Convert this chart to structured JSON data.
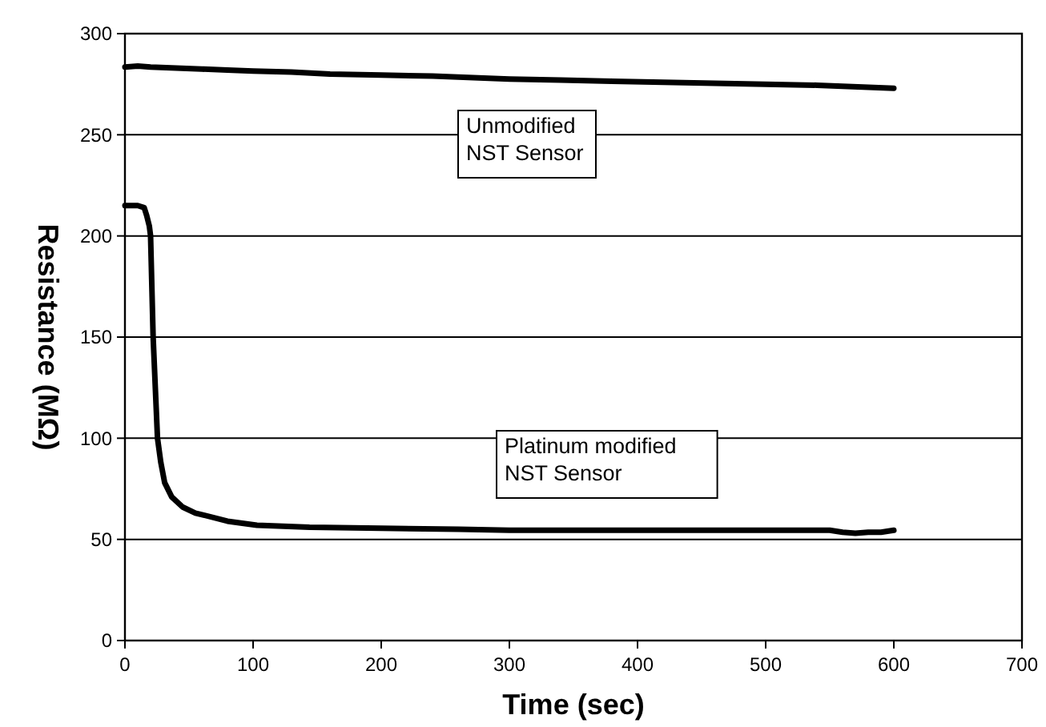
{
  "chart_data": {
    "type": "line",
    "xlabel": "Time (sec)",
    "ylabel": "Resistance (MΩ)",
    "xlim": [
      0,
      700
    ],
    "ylim": [
      0,
      300
    ],
    "xticks": [
      0,
      100,
      200,
      300,
      400,
      500,
      600,
      700
    ],
    "yticks": [
      0,
      50,
      100,
      150,
      200,
      250,
      300
    ],
    "grid": "y",
    "line_style": "solid",
    "marker": "none",
    "series": [
      {
        "color": "#000000",
        "x": [
          0,
          10,
          20,
          40,
          60,
          80,
          100,
          130,
          160,
          200,
          240,
          280,
          300,
          340,
          380,
          420,
          460,
          500,
          540,
          560,
          580,
          600
        ],
        "values": [
          283.5,
          284,
          283.5,
          283,
          282.5,
          282,
          281.5,
          281,
          280,
          279.5,
          279,
          278,
          277.5,
          277,
          276.5,
          276,
          275.5,
          275,
          274.5,
          274,
          273.5,
          273
        ]
      },
      {
        "color": "#000000",
        "x": [
          0,
          5,
          10,
          15,
          17,
          19,
          20,
          22,
          25.4,
          28,
          31,
          36.5,
          45,
          55,
          61.5,
          80,
          103,
          144,
          200,
          260,
          300,
          400,
          500,
          550,
          560,
          570,
          580,
          590,
          600
        ],
        "values": [
          215,
          215,
          215,
          214,
          210,
          205,
          200,
          150,
          100,
          88,
          78,
          71,
          66,
          63,
          62,
          59,
          57,
          56,
          55.5,
          55,
          54.5,
          54.5,
          54.5,
          54.5,
          53.5,
          53,
          53.5,
          53.5,
          54.5
        ]
      }
    ],
    "annotations": [
      "Unmodified\nNST Sensor",
      "Platinum modified\nNST Sensor"
    ]
  }
}
